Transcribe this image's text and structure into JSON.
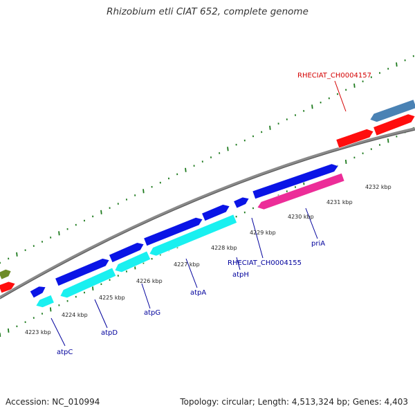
{
  "title": "Rhizobium etli CIAT 652, complete genome",
  "accession": "Accession: NC_010994",
  "summary": "Topology: circular; Length: 4,513,324 bp; Genes: 4,403",
  "colors": {
    "backbone": "#8a8a8a",
    "tick": "#1d7a1d",
    "forward_gene": "#0a14e6",
    "reverse_gene": "#19f0f0",
    "red_gene": "#ff0d0d",
    "pink_gene": "#ec2d98",
    "steel_gene": "#4a82b4",
    "olive_gene": "#6e8c28",
    "gene_label": "#00009c",
    "red_label": "#d40000"
  },
  "kbp_labels": [
    "4223 kbp",
    "4224 kbp",
    "4225 kbp",
    "4226 kbp",
    "4227 kbp",
    "4228 kbp",
    "4229 kbp",
    "4230 kbp",
    "4231 kbp",
    "4232 kbp"
  ],
  "gene_labels": [
    {
      "name": "atpC",
      "color": "gene_label"
    },
    {
      "name": "atpD",
      "color": "gene_label"
    },
    {
      "name": "atpG",
      "color": "gene_label"
    },
    {
      "name": "atpA",
      "color": "gene_label"
    },
    {
      "name": "atpH",
      "color": "gene_label"
    },
    {
      "name": "RHECIAT_CH0004155",
      "color": "gene_label"
    },
    {
      "name": "priA",
      "color": "gene_label"
    },
    {
      "name": "RHECIAT_CH0004157",
      "color": "red_label"
    }
  ]
}
